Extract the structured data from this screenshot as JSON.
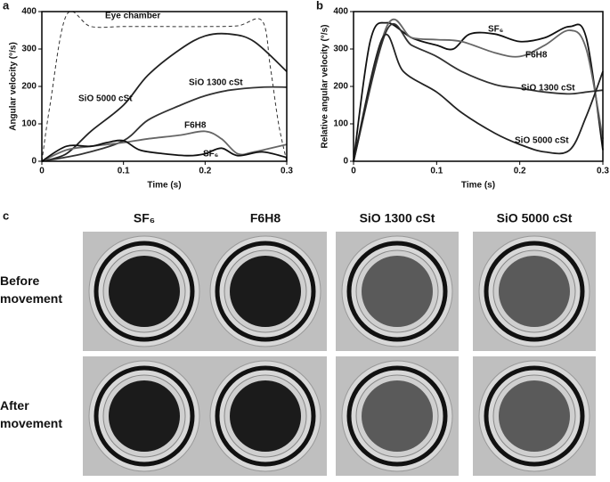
{
  "panels": [
    "a",
    "b",
    "c"
  ],
  "chart_data": [
    {
      "type": "line",
      "x_label": "Time (s)",
      "y_label": "Angular velocity (°/s)",
      "xlim": [
        0,
        0.3
      ],
      "ylim": [
        0,
        400
      ],
      "xticks": [
        0,
        0.1,
        0.2,
        0.3
      ],
      "yticks": [
        0,
        100,
        200,
        300,
        400
      ],
      "series": [
        {
          "name": "Eye chamber",
          "color": "#333333",
          "style": "dashed",
          "x": [
            0,
            0.01,
            0.03,
            0.06,
            0.1,
            0.15,
            0.2,
            0.24,
            0.27,
            0.28,
            0.29,
            0.3
          ],
          "values": [
            0,
            150,
            390,
            360,
            360,
            360,
            360,
            362,
            375,
            250,
            100,
            0
          ]
        },
        {
          "name": "SiO 5000 cSt",
          "color": "#222222",
          "style": "solid",
          "x": [
            0,
            0.03,
            0.06,
            0.1,
            0.13,
            0.17,
            0.2,
            0.23,
            0.26,
            0.3
          ],
          "values": [
            0,
            20,
            80,
            150,
            230,
            300,
            335,
            340,
            320,
            240
          ]
        },
        {
          "name": "SiO 1300 cSt",
          "color": "#333333",
          "style": "solid",
          "x": [
            0,
            0.05,
            0.1,
            0.13,
            0.17,
            0.2,
            0.23,
            0.27,
            0.3
          ],
          "values": [
            0,
            20,
            55,
            110,
            150,
            175,
            190,
            198,
            198
          ]
        },
        {
          "name": "F6H8",
          "color": "#666666",
          "style": "solid",
          "x": [
            0,
            0.03,
            0.06,
            0.1,
            0.13,
            0.17,
            0.2,
            0.22,
            0.24,
            0.26,
            0.3
          ],
          "values": [
            0,
            30,
            40,
            50,
            60,
            70,
            80,
            60,
            20,
            25,
            45
          ]
        },
        {
          "name": "SF₆",
          "color": "#111111",
          "style": "solid",
          "x": [
            0,
            0.03,
            0.06,
            0.08,
            0.1,
            0.12,
            0.15,
            0.18,
            0.2,
            0.22,
            0.24,
            0.27,
            0.3
          ],
          "values": [
            0,
            40,
            40,
            50,
            55,
            30,
            20,
            15,
            20,
            35,
            15,
            25,
            10
          ]
        }
      ]
    },
    {
      "type": "line",
      "x_label": "Time (s)",
      "y_label": "Relative angular velocity (°/s)",
      "xlim": [
        0,
        0.3
      ],
      "ylim": [
        0,
        400
      ],
      "xticks": [
        0,
        0.1,
        0.2,
        0.3
      ],
      "yticks": [
        0,
        100,
        200,
        300,
        400
      ],
      "series": [
        {
          "name": "SF₆",
          "color": "#111111",
          "style": "solid",
          "x": [
            0,
            0.02,
            0.04,
            0.07,
            0.1,
            0.12,
            0.14,
            0.17,
            0.2,
            0.23,
            0.26,
            0.28,
            0.3
          ],
          "values": [
            0,
            320,
            370,
            330,
            310,
            300,
            340,
            340,
            320,
            330,
            360,
            330,
            30
          ]
        },
        {
          "name": "F6H8",
          "color": "#666666",
          "style": "solid",
          "x": [
            0,
            0.04,
            0.07,
            0.1,
            0.13,
            0.17,
            0.2,
            0.23,
            0.26,
            0.28,
            0.3
          ],
          "values": [
            0,
            360,
            330,
            325,
            320,
            290,
            280,
            310,
            350,
            300,
            60
          ]
        },
        {
          "name": "SiO 1300 cSt",
          "color": "#333333",
          "style": "solid",
          "x": [
            0,
            0.04,
            0.07,
            0.1,
            0.13,
            0.17,
            0.2,
            0.23,
            0.26,
            0.28,
            0.3
          ],
          "values": [
            0,
            350,
            310,
            280,
            240,
            205,
            195,
            185,
            180,
            185,
            190
          ]
        },
        {
          "name": "SiO 5000 cSt",
          "color": "#222222",
          "style": "solid",
          "x": [
            0,
            0.035,
            0.06,
            0.1,
            0.13,
            0.17,
            0.2,
            0.23,
            0.26,
            0.28,
            0.3
          ],
          "values": [
            0,
            330,
            240,
            185,
            130,
            75,
            45,
            25,
            30,
            120,
            240
          ]
        }
      ]
    }
  ],
  "photo_grid": {
    "columns": [
      "SF₆",
      "F6H8",
      "SiO 1300 cSt",
      "SiO 5000 cSt"
    ],
    "rows": [
      "Before movement",
      "After movement"
    ]
  }
}
